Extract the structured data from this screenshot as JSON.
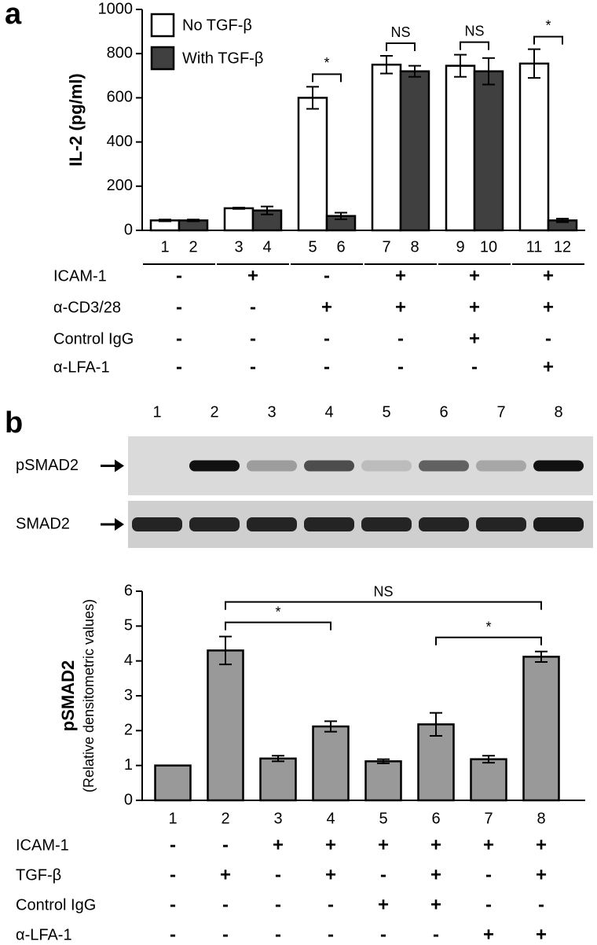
{
  "chart_data": [
    {
      "type": "bar",
      "panel_label": "a",
      "y_label": "IL-2 (pg/ml)",
      "ylim": [
        0,
        1000
      ],
      "yticks": [
        0,
        200,
        400,
        600,
        800,
        1000
      ],
      "legend": "upper left",
      "series": [
        {
          "name": "No TGF-β",
          "color": "#ffffff",
          "labels": [
            "1",
            "3",
            "5",
            "7",
            "9",
            "11"
          ],
          "values": [
            45,
            100,
            600,
            750,
            745,
            755
          ],
          "errors": [
            4,
            3,
            50,
            40,
            50,
            65
          ]
        },
        {
          "name": "With TGF-β",
          "color": "#404040",
          "labels": [
            "2",
            "4",
            "6",
            "8",
            "10",
            "12"
          ],
          "values": [
            45,
            90,
            65,
            720,
            720,
            45
          ],
          "errors": [
            4,
            18,
            15,
            25,
            60,
            8
          ]
        }
      ],
      "significance": [
        null,
        null,
        "*",
        "NS",
        "NS",
        "*"
      ],
      "conditions": [
        {
          "label": "ICAM-1",
          "values": [
            "-",
            "+",
            "-",
            "+",
            "+",
            "+"
          ]
        },
        {
          "label": "α-CD3/28",
          "values": [
            "-",
            "-",
            "+",
            "+",
            "+",
            "+"
          ]
        },
        {
          "label": "Control IgG",
          "values": [
            "-",
            "-",
            "-",
            "-",
            "+",
            "-"
          ]
        },
        {
          "label": "α-LFA-1",
          "values": [
            "-",
            "-",
            "-",
            "-",
            "-",
            "+"
          ]
        }
      ]
    },
    {
      "type": "bar",
      "panel_label": "b",
      "blot": {
        "lanes": [
          "1",
          "2",
          "3",
          "4",
          "5",
          "6",
          "7",
          "8"
        ],
        "rows": [
          "pSMAD2",
          "SMAD2"
        ]
      },
      "y_label": "pSMAD2",
      "y_sublabel": "(Relative densitometric values)",
      "ylim": [
        0,
        6
      ],
      "yticks": [
        0,
        1,
        2,
        3,
        4,
        5,
        6
      ],
      "color": "#999999",
      "categories": [
        "1",
        "2",
        "3",
        "4",
        "5",
        "6",
        "7",
        "8"
      ],
      "values": [
        1,
        4.3,
        1.2,
        2.12,
        1.12,
        2.18,
        1.18,
        4.12
      ],
      "errors": [
        0,
        0.4,
        0.08,
        0.15,
        0.06,
        0.33,
        0.1,
        0.15
      ],
      "comparisons": [
        {
          "categories": [
            "2",
            "4"
          ],
          "label": "*"
        },
        {
          "categories": [
            "6",
            "8"
          ],
          "label": "*"
        },
        {
          "categories": [
            "2",
            "8"
          ],
          "label": "NS"
        }
      ],
      "conditions": [
        {
          "label": "ICAM-1",
          "values": [
            "-",
            "-",
            "+",
            "+",
            "+",
            "+",
            "+",
            "+"
          ]
        },
        {
          "label": "TGF-β",
          "values": [
            "-",
            "+",
            "-",
            "+",
            "-",
            "+",
            "-",
            "+"
          ]
        },
        {
          "label": "Control IgG",
          "values": [
            "-",
            "-",
            "-",
            "-",
            "+",
            "+",
            "-",
            "-"
          ]
        },
        {
          "label": "α-LFA-1",
          "values": [
            "-",
            "-",
            "-",
            "-",
            "-",
            "-",
            "+",
            "+"
          ]
        }
      ]
    }
  ]
}
